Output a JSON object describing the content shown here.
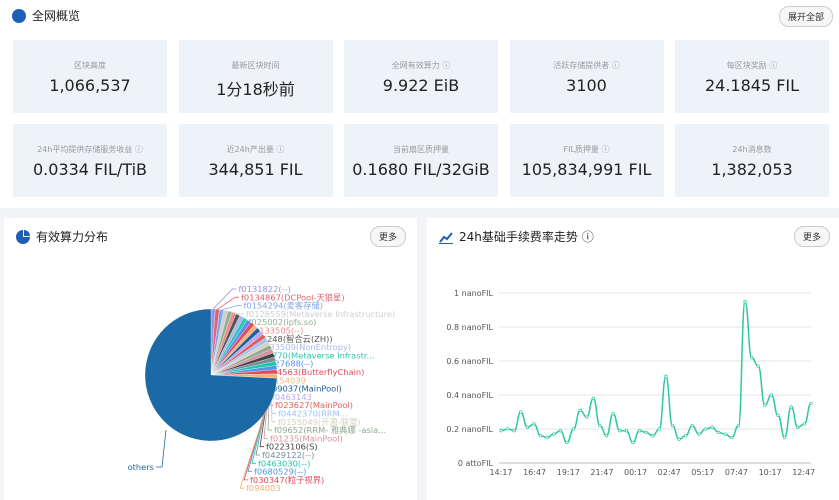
{
  "overview": {
    "title": "全网概览",
    "expand_label": "展开全部",
    "cards": [
      {
        "label": "区块高度",
        "value": "1,066,537"
      },
      {
        "label": "最新区块时间",
        "value": "1分18秒前"
      },
      {
        "label": "全网有效算力 ⓘ",
        "value": "9.922 EiB"
      },
      {
        "label": "活跃存储提供者 ⓘ",
        "value": "3100"
      },
      {
        "label": "每区块奖励 ⓘ",
        "value": "24.1845 FIL"
      },
      {
        "label": "24h平均提供存储服务收益 ⓘ",
        "value": "0.0334 FIL/TiB"
      },
      {
        "label": "近24h产出量 ⓘ",
        "value": "344,851 FIL"
      },
      {
        "label": "当前扇区质押量",
        "value": "0.1680 FIL/32GiB"
      },
      {
        "label": "FIL质押量 ⓘ",
        "value": "105,834,991 FIL"
      },
      {
        "label": "24h消息数",
        "value": "1,382,053"
      }
    ]
  },
  "power_panel": {
    "title": "有效算力分布",
    "more_label": "更多"
  },
  "fee_panel": {
    "title": "24h基础手续费率走势 ⓘ",
    "more_label": "更多"
  },
  "chart_data": [
    {
      "type": "pie",
      "labels": [
        "f0131822(--)",
        "f0134867(DCPool-天狼星)",
        "f0154294(麦客存储)",
        "f0128559(Metaverse Infrastructure)",
        "f025002(ipfs.so)",
        "f0133505(--)",
        "f01248(智合云(ZH))",
        "f0133509(NonEntropy)",
        "f02770(Metaverse Infrastr...",
        "f0427688(--)",
        "f024563(ButterflyChain)",
        "f0154039",
        "f09037(MainPool)",
        "f0463143",
        "f023627(MainPool)",
        "f0442370(RRM...",
        "f0155049(开源-联盟)",
        "f09652(RRM- 雅典娜 -asia...",
        "f01235(MainPool)",
        "f0223106(S)",
        "f0429122(--)",
        "f0463030(--)",
        "f0680529(--)",
        "f030347(粒子视界)",
        "f094003",
        "others"
      ],
      "values": [
        1,
        1,
        1,
        1,
        1,
        1,
        1,
        1,
        1,
        1,
        1,
        1,
        1,
        1,
        1,
        1,
        1,
        1,
        1,
        1,
        1,
        1,
        1,
        1,
        1,
        72
      ],
      "colors": [
        "#9a8fe0",
        "#e0636b",
        "#7fa6e8",
        "#cfcfcf",
        "#8fb08f",
        "#f08a8a",
        "#555555",
        "#a9b8e8",
        "#2ec7b5",
        "#5b8ff0",
        "#e8485c",
        "#f5b27a",
        "#1a5fa0",
        "#b8a8f0",
        "#e06060",
        "#9ec2f5",
        "#d8d0c0",
        "#8fa88f",
        "#d88fa0",
        "#444444",
        "#7a8a9a",
        "#1fc7a8",
        "#4a9ae8",
        "#e04a5a",
        "#f5b070",
        "#1b6aa5"
      ]
    },
    {
      "type": "line",
      "x_ticks": [
        "14:17",
        "16:47",
        "19:17",
        "21:47",
        "00:17",
        "02:47",
        "05:17",
        "07:47",
        "10:17",
        "12:47"
      ],
      "y_ticks": [
        "0 attoFIL",
        "0.2 nanoFIL",
        "0.4 nanoFIL",
        "0.6 nanoFIL",
        "0.8 nanoFIL",
        "1 nanoFIL"
      ],
      "ylim": [
        0,
        1
      ],
      "unit": "nanoFIL",
      "grid": true,
      "color": "#2ec7a6",
      "values": [
        0.19,
        0.2,
        0.19,
        0.3,
        0.21,
        0.23,
        0.16,
        0.15,
        0.17,
        0.19,
        0.12,
        0.2,
        0.31,
        0.27,
        0.38,
        0.22,
        0.16,
        0.29,
        0.19,
        0.19,
        0.12,
        0.19,
        0.18,
        0.16,
        0.2,
        0.51,
        0.22,
        0.14,
        0.16,
        0.22,
        0.17,
        0.2,
        0.21,
        0.18,
        0.17,
        0.15,
        0.22,
        0.95,
        0.62,
        0.57,
        0.34,
        0.4,
        0.28,
        0.15,
        0.33,
        0.21,
        0.23,
        0.35
      ]
    }
  ]
}
